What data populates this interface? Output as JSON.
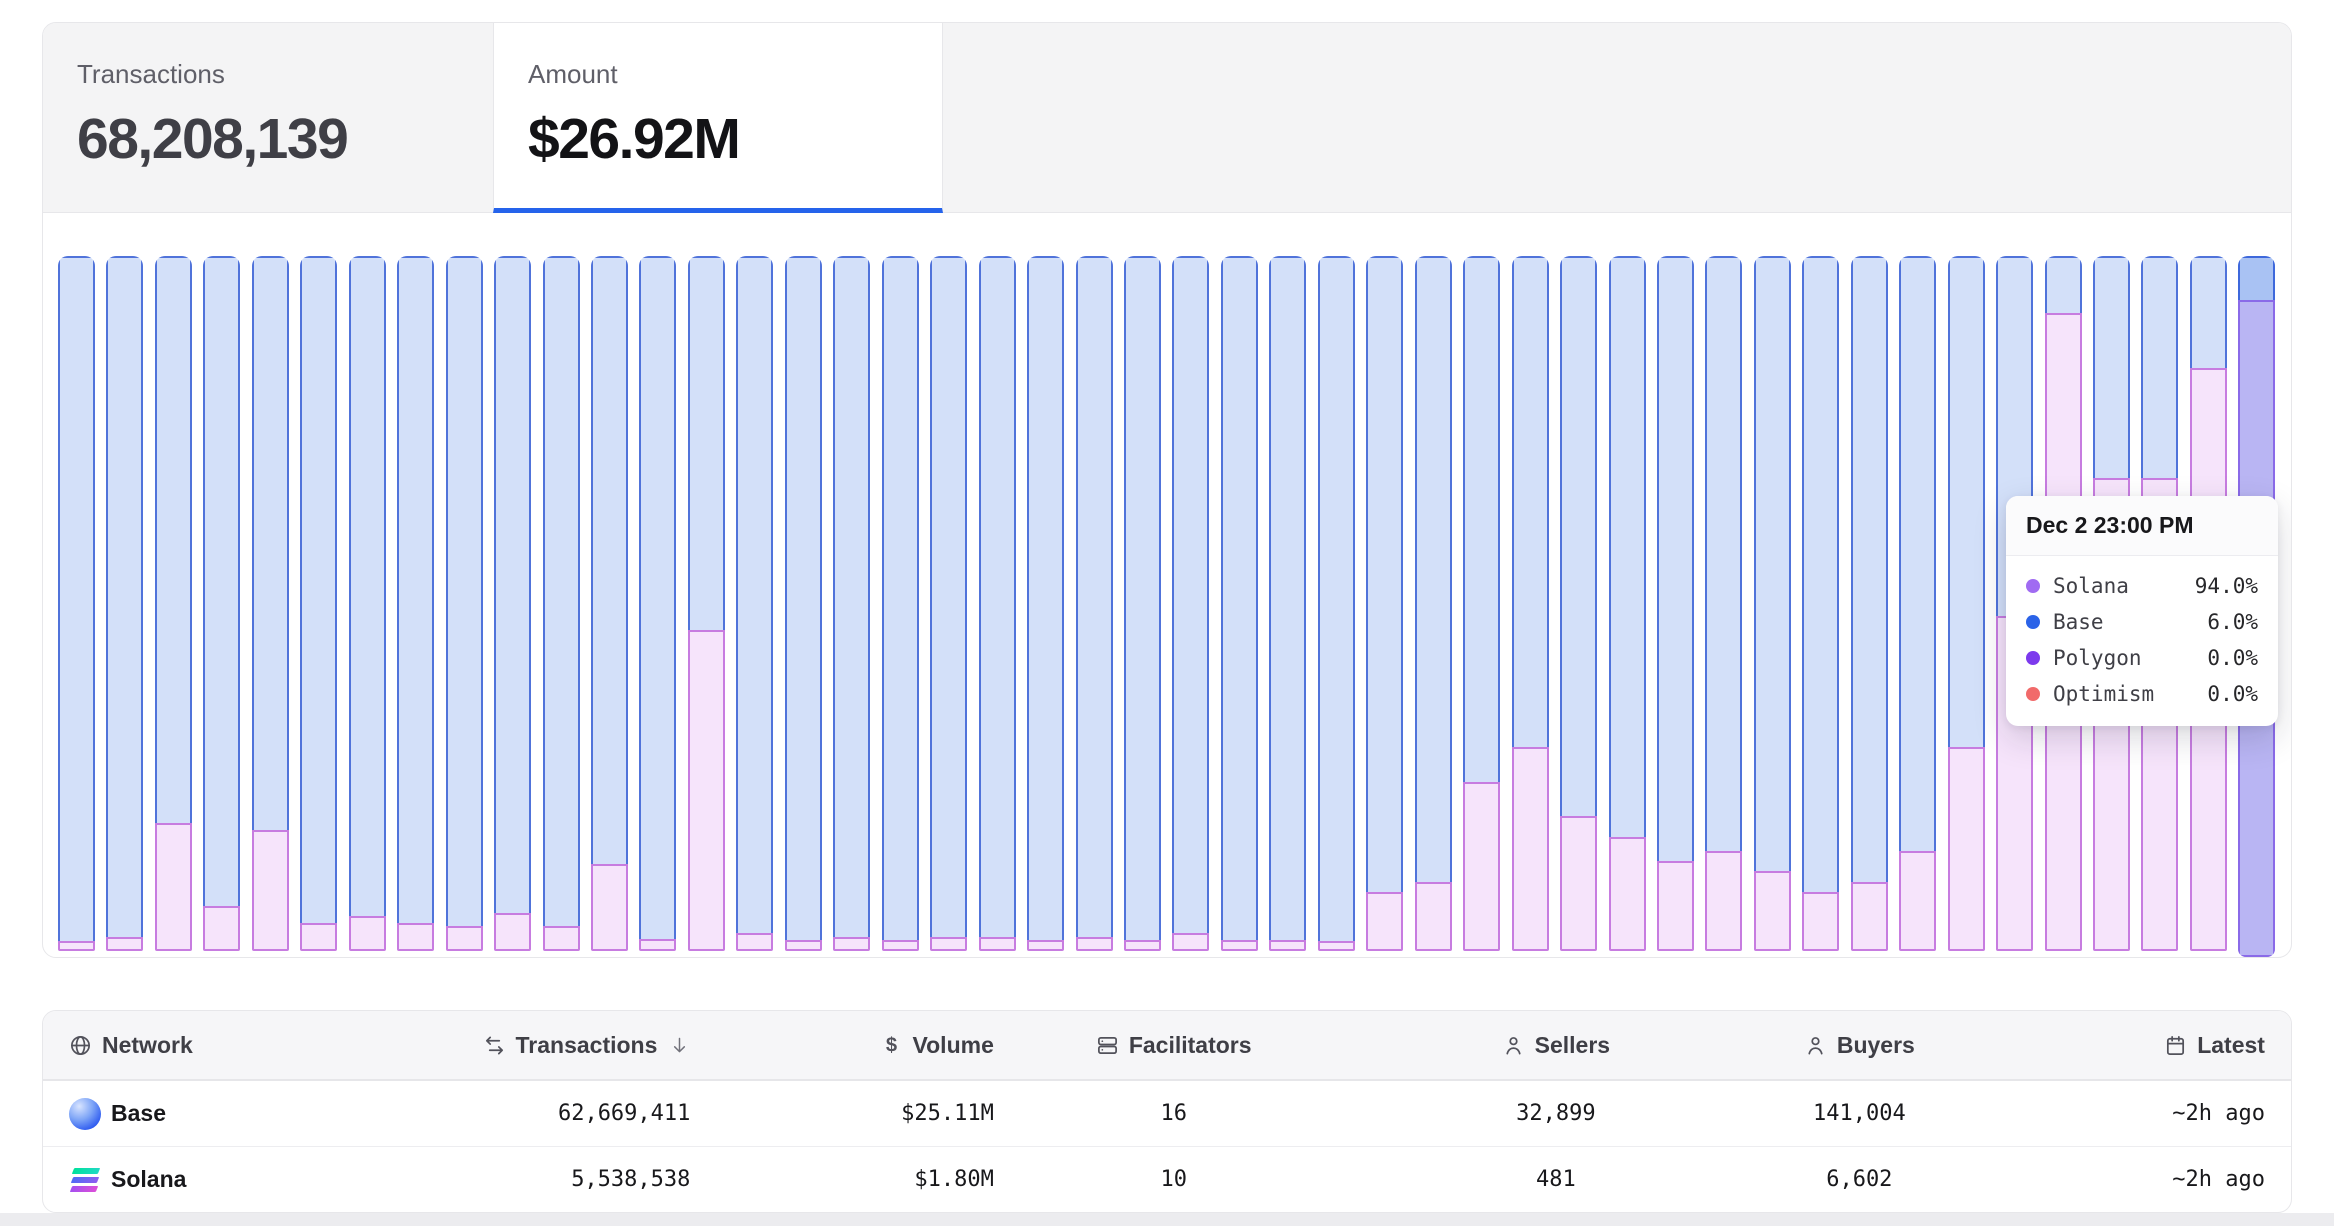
{
  "tabs": [
    {
      "label": "Transactions",
      "value": "68,208,139",
      "active": false
    },
    {
      "label": "Amount",
      "value": "$26.92M",
      "active": true
    }
  ],
  "chart_data": {
    "type": "bar",
    "stacked": true,
    "normalized": "100% stacked, hourly network share of amount",
    "legend_position": "tooltip-only",
    "grid": false,
    "axis_labels_visible": false,
    "series_colors": {
      "Base": "#5073da",
      "Solana": "#c77ce0",
      "Polygon": "#7c3aed",
      "Optimism": "#f16a6a"
    },
    "categories_note": "46 hourly bars ending Dec 2 23:00 PM",
    "solana_pct": [
      0.8,
      1.5,
      18,
      6,
      17,
      3.5,
      4.5,
      3.5,
      3,
      5,
      3,
      12,
      1.2,
      46,
      2,
      1,
      1.5,
      1,
      1.5,
      1.5,
      1,
      1.5,
      1,
      2,
      1,
      1,
      0.8,
      8,
      9.5,
      24,
      29,
      19,
      16,
      12.5,
      14,
      11,
      8,
      9.5,
      14,
      29,
      48,
      92,
      68,
      68,
      84,
      94
    ],
    "base_pct_rule": "100 minus solana_pct (Polygon and Optimism are 0.0%)",
    "hovered_index": 45,
    "tooltip": {
      "title": "Dec 2 23:00 PM",
      "entries": [
        {
          "name": "Solana",
          "value": "94.0%",
          "color": "#a06bf2"
        },
        {
          "name": "Base",
          "value": "6.0%",
          "color": "#2b63e8"
        },
        {
          "name": "Polygon",
          "value": "0.0%",
          "color": "#7c3aed"
        },
        {
          "name": "Optimism",
          "value": "0.0%",
          "color": "#f16a6a"
        }
      ]
    }
  },
  "table": {
    "columns": [
      {
        "label": "Network",
        "icon": "globe",
        "align": "left",
        "sort": ""
      },
      {
        "label": "Transactions",
        "icon": "swap",
        "align": "right",
        "sort": "desc"
      },
      {
        "label": "Volume",
        "icon": "dollar",
        "align": "right",
        "sort": ""
      },
      {
        "label": "Facilitators",
        "icon": "server",
        "align": "center",
        "sort": ""
      },
      {
        "label": "Sellers",
        "icon": "person",
        "align": "center",
        "sort": ""
      },
      {
        "label": "Buyers",
        "icon": "person",
        "align": "center",
        "sort": ""
      },
      {
        "label": "Latest",
        "icon": "calendar",
        "align": "right",
        "sort": ""
      }
    ],
    "rows": [
      {
        "network": "Base",
        "logo": "base",
        "cells": [
          "62,669,411",
          "$25.11M",
          "16",
          "32,899",
          "141,004",
          "~2h ago"
        ]
      },
      {
        "network": "Solana",
        "logo": "solana",
        "cells": [
          "5,538,538",
          "$1.80M",
          "10",
          "481",
          "6,602",
          "~2h ago"
        ]
      }
    ]
  }
}
